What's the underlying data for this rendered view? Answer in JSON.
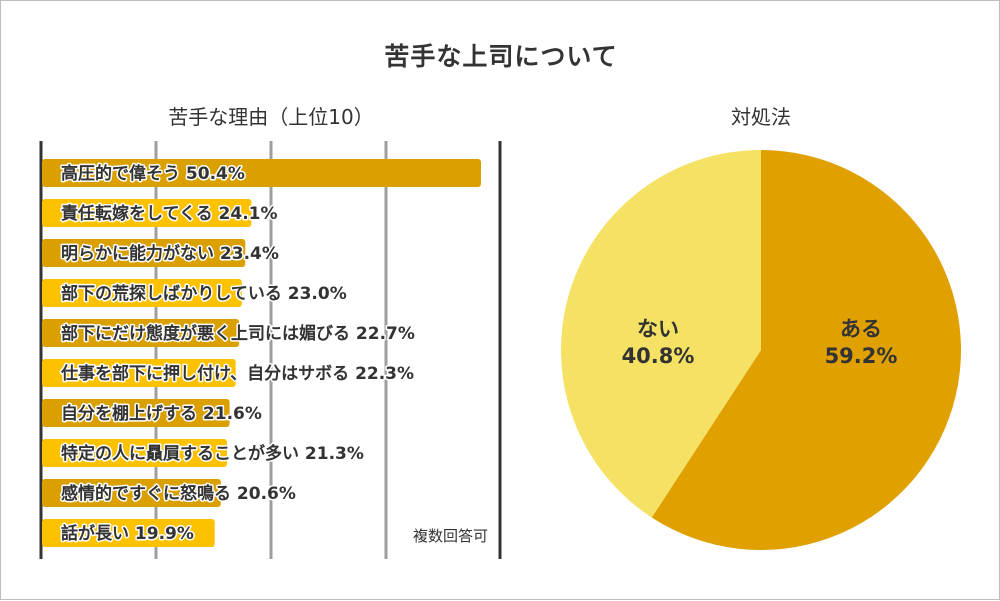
{
  "page": {
    "title": "苦手な上司について"
  },
  "chart_data": [
    {
      "type": "bar",
      "orientation": "horizontal",
      "title": "苦手な理由（上位10）",
      "categories": [
        "高圧的で偉そう",
        "責任転嫁をしてくる",
        "明らかに能力がない",
        "部下の荒探しばかりしている",
        "部下にだけ態度が悪く上司には媚びる",
        "仕事を部下に押し付け、自分はサボる",
        "自分を棚上げする",
        "特定の人に贔屓することが多い",
        "感情的ですぐに怒鳴る",
        "話が長い"
      ],
      "values": [
        50.4,
        24.1,
        23.4,
        23.0,
        22.7,
        22.3,
        21.6,
        21.3,
        20.6,
        19.9
      ],
      "value_labels": [
        "50.4%",
        "24.1%",
        "23.4%",
        "23.0%",
        "22.7%",
        "22.3%",
        "21.6%",
        "21.3%",
        "20.6%",
        "19.9%"
      ],
      "xlim": [
        0,
        52
      ],
      "grid": true,
      "note": "複数回答可",
      "colors": {
        "dark": "#d9a000",
        "light": "#fcc200"
      }
    },
    {
      "type": "pie",
      "title": "対処法",
      "labels": [
        "ある",
        "ない"
      ],
      "values": [
        59.2,
        40.8
      ],
      "value_labels": [
        "59.2%",
        "40.8%"
      ],
      "colors": [
        "#e0a000",
        "#f5e163"
      ]
    }
  ]
}
